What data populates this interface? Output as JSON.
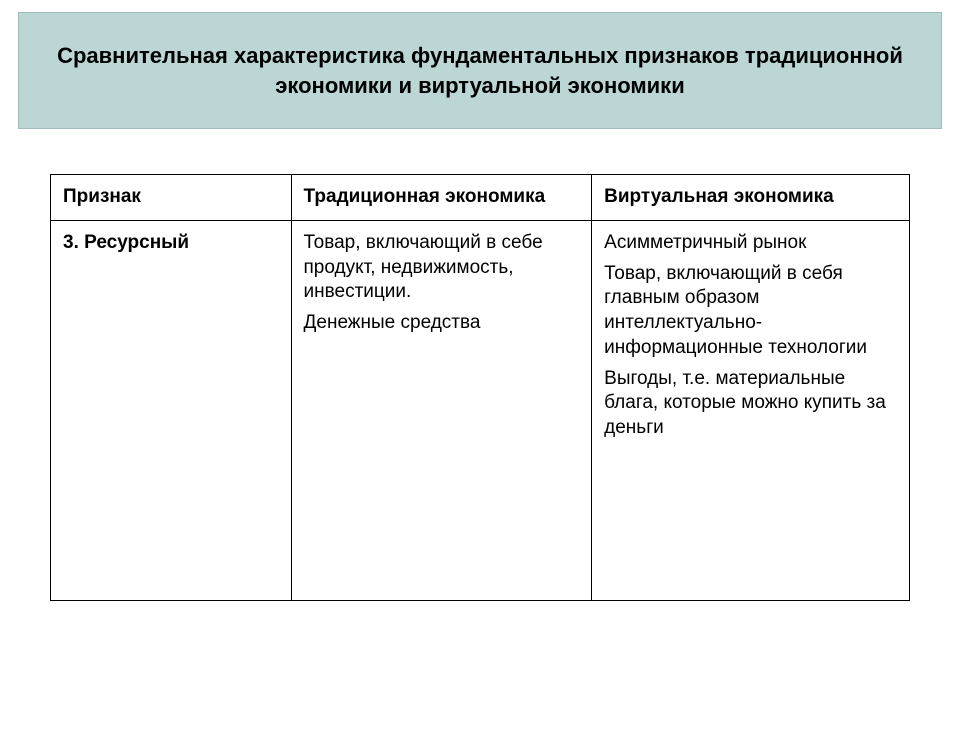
{
  "title": "Сравнительная характеристика фундаментальных признаков традиционной экономики и виртуальной экономики",
  "table": {
    "type": "table",
    "columns": [
      "Признак",
      "Традиционная экономика",
      "Виртуальная экономика"
    ],
    "column_widths_pct": [
      28,
      35,
      37
    ],
    "border_color": "#000000",
    "header_fontsize": 19,
    "cell_fontsize": 19,
    "rows": [
      {
        "label": "3. Ресурсный",
        "traditional": {
          "p1": "Товар, включающий в себе продукт, недвижимость, инвестиции.",
          "p2": "Денежные средства"
        },
        "virtual": {
          "p1": "Асимметричный рынок",
          "p2": "Товар, включающий в себя главным образом интеллектуально-информационные технологии",
          "p3": "Выгоды, т.е. материальные блага, которые можно купить за деньги"
        }
      }
    ]
  },
  "colors": {
    "title_bg": "#bcd5d5",
    "title_border": "#a0bcbc",
    "page_bg": "#ffffff",
    "text": "#000000",
    "table_border": "#000000"
  },
  "typography": {
    "title_fontsize": 22,
    "title_weight": "bold",
    "header_weight": "bold",
    "body_fontsize": 19,
    "font_family": "Arial"
  }
}
